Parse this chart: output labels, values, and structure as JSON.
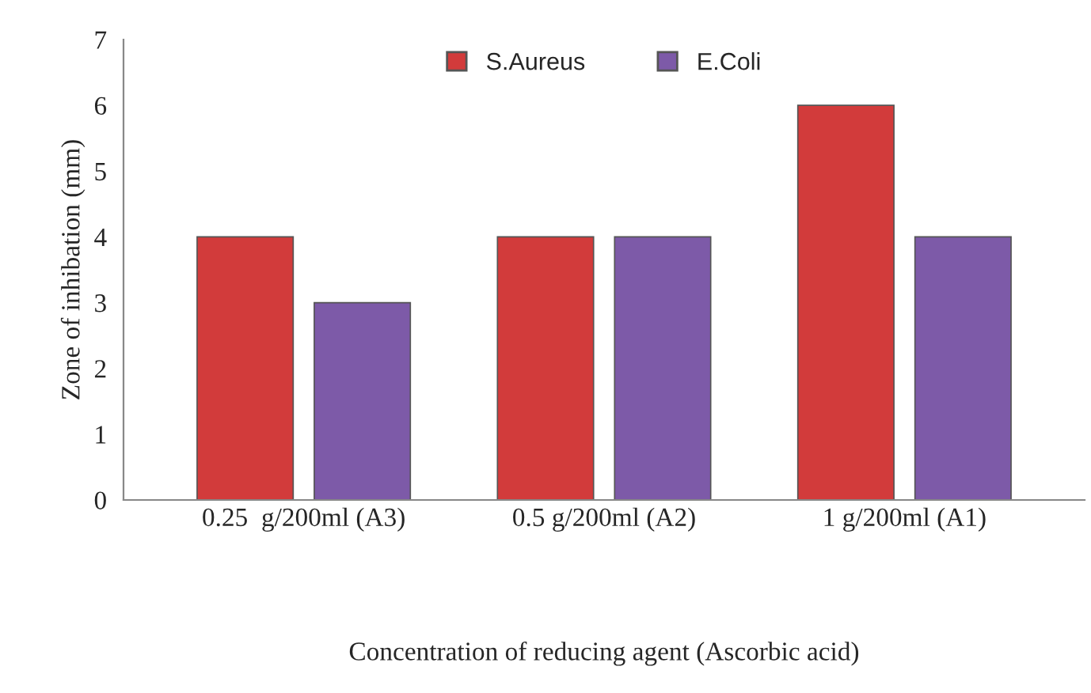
{
  "chart_data": {
    "type": "bar",
    "xlabel": "Concentration of reducing agent (Ascorbic acid)",
    "ylabel": "Zone of inhibation (mm)",
    "categories": [
      "0.25  g/200ml (A3)",
      "0.5 g/200ml (A2)",
      "1 g/200ml (A1)"
    ],
    "series": [
      {
        "name": "S.Aureus",
        "color": "#d23b3b",
        "values": [
          4,
          4,
          6
        ]
      },
      {
        "name": "E.Coli",
        "color": "#7d5aa8",
        "values": [
          3,
          4,
          4
        ]
      }
    ],
    "ylim": [
      0,
      7
    ],
    "yticks": [
      0,
      1,
      2,
      3,
      4,
      5,
      6,
      7
    ],
    "legend": "top",
    "grid": false
  }
}
